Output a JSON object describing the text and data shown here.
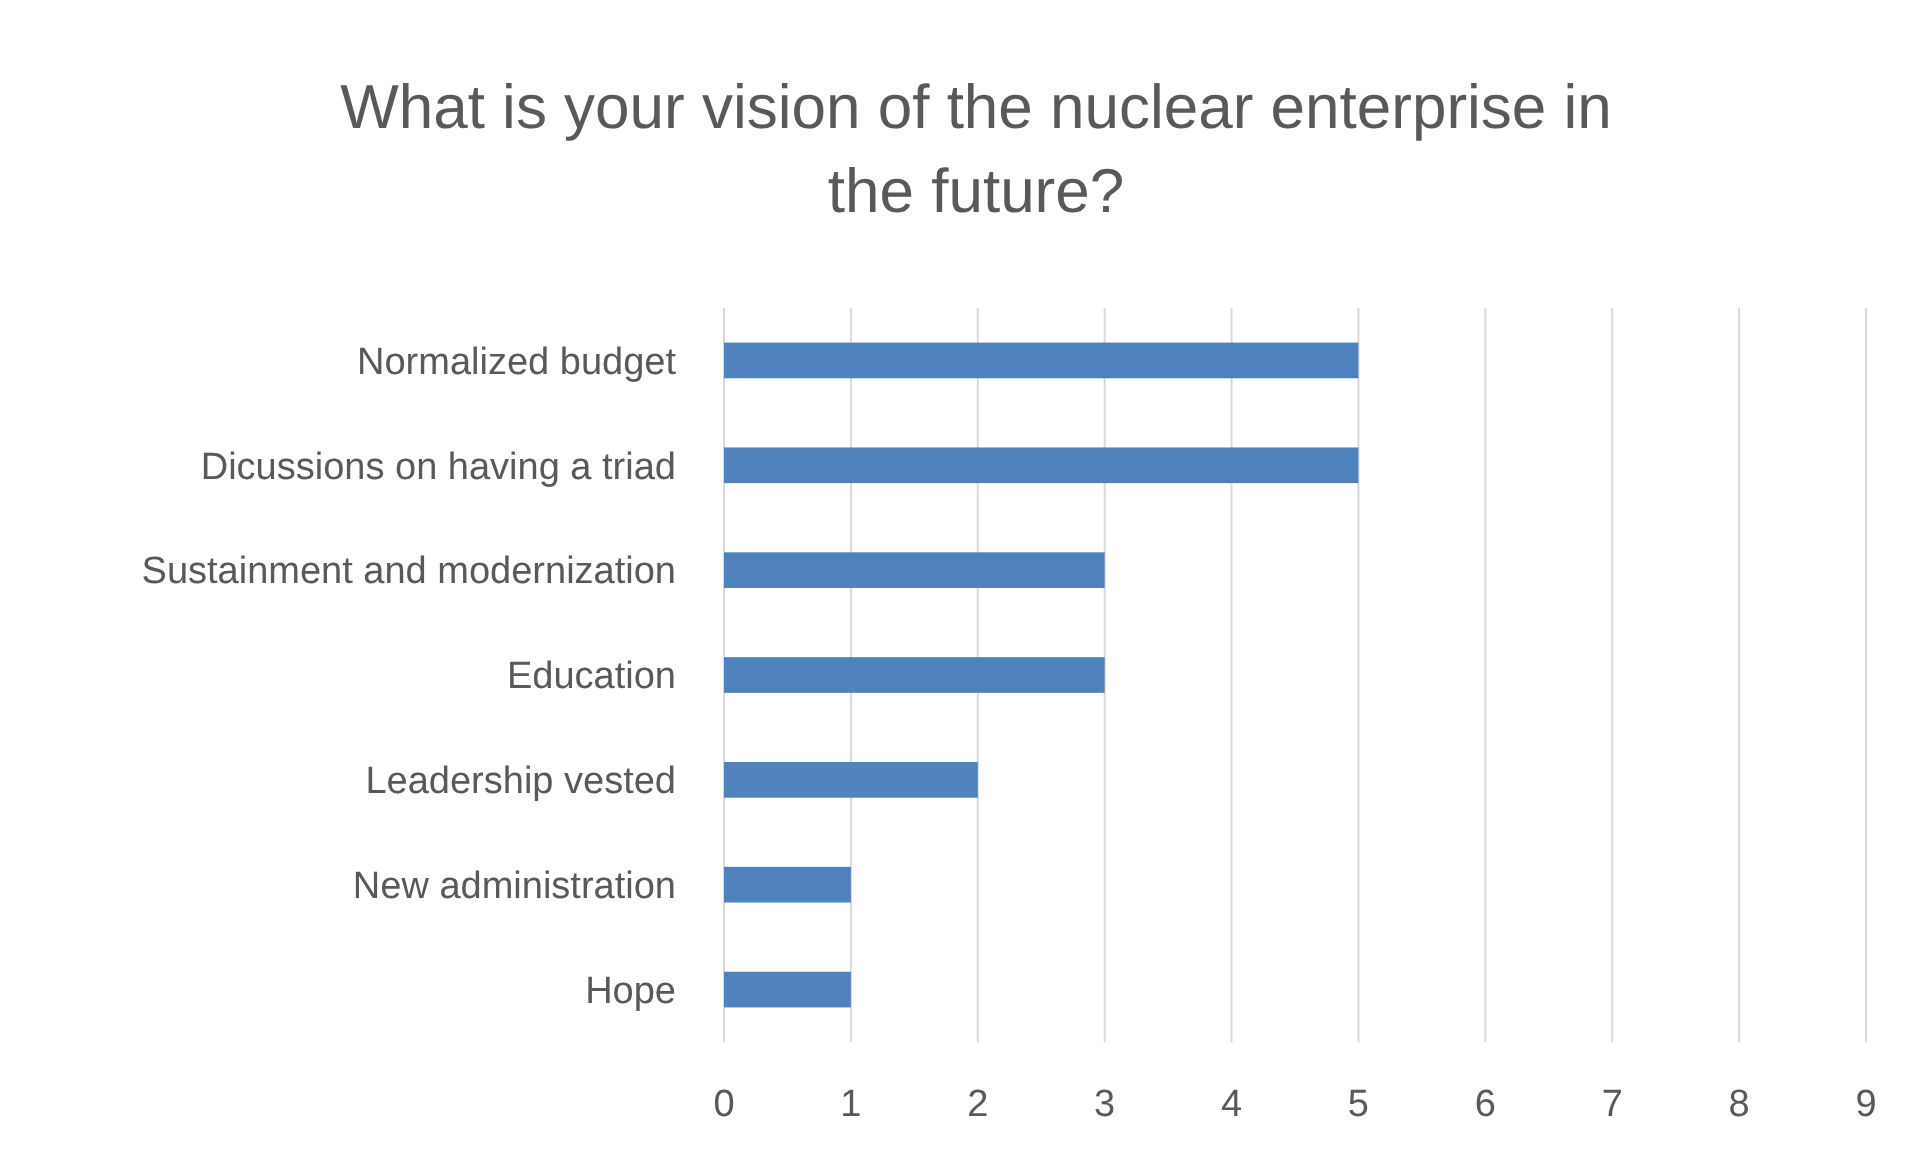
{
  "chart_data": {
    "type": "bar",
    "orientation": "horizontal",
    "title": "What is your vision of the nuclear enterprise in the future?",
    "categories": [
      "Normalized budget",
      "Dicussions on having a triad",
      "Sustainment and modernization",
      "Education",
      "Leadership vested",
      "New administration",
      "Hope"
    ],
    "values": [
      5,
      5,
      3,
      3,
      2,
      1,
      1
    ],
    "color": "#4f81bd",
    "xlim": [
      0,
      9
    ],
    "xticks": [
      0,
      1,
      2,
      3,
      4,
      5,
      6,
      7,
      8,
      9
    ],
    "grid": "x"
  }
}
